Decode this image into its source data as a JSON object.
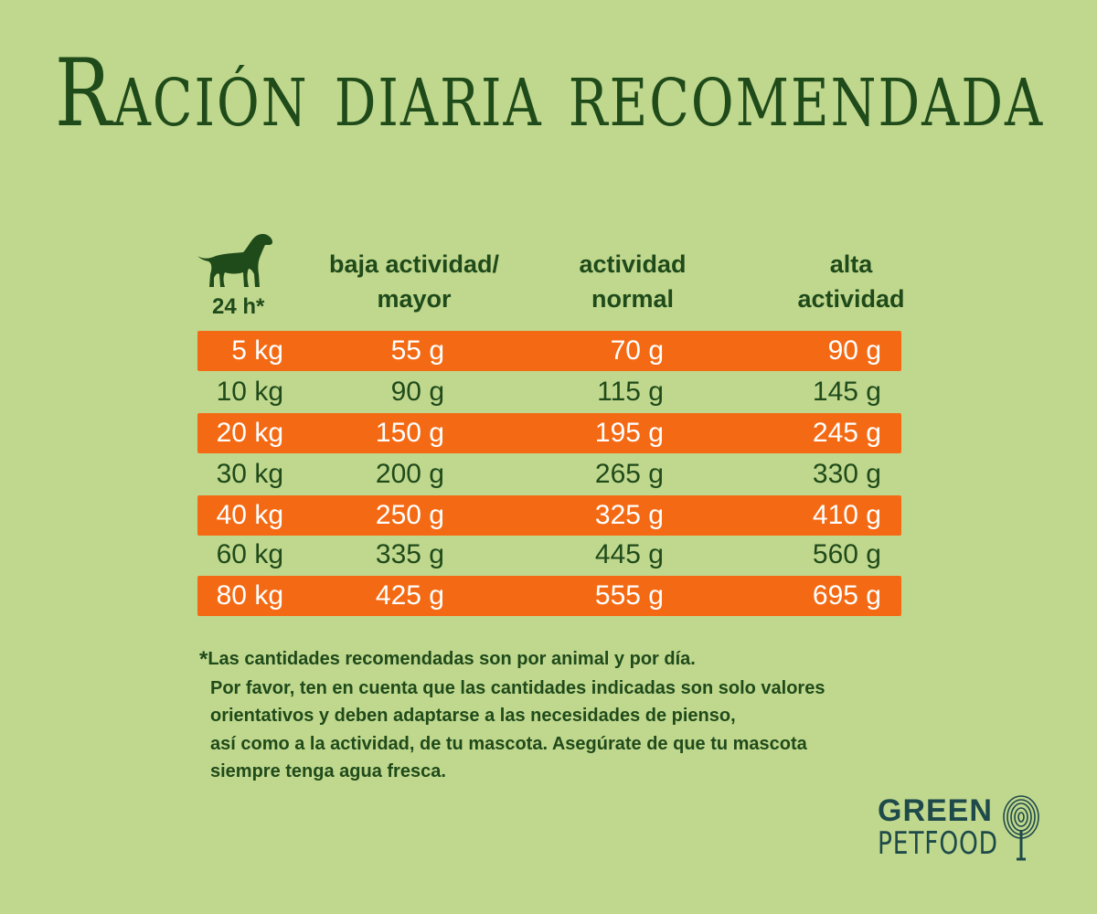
{
  "title": "Ración diaria recomendada",
  "header": {
    "period_label": "24 h*",
    "columns": [
      {
        "line1": "baja actividad/",
        "line2": "mayor"
      },
      {
        "line1": "actividad",
        "line2": "normal"
      },
      {
        "line1": "alta",
        "line2": "actividad"
      }
    ]
  },
  "table": {
    "rows": [
      {
        "weight": "5 kg",
        "low": "55 g",
        "normal": "70 g",
        "high": "90 g"
      },
      {
        "weight": "10 kg",
        "low": "90 g",
        "normal": "115 g",
        "high": "145 g"
      },
      {
        "weight": "20 kg",
        "low": "150 g",
        "normal": "195 g",
        "high": "245 g"
      },
      {
        "weight": "30 kg",
        "low": "200 g",
        "normal": "265 g",
        "high": "330 g"
      },
      {
        "weight": "40 kg",
        "low": "250 g",
        "normal": "325 g",
        "high": "410 g"
      },
      {
        "weight": "60 kg",
        "low": "335 g",
        "normal": "445 g",
        "high": "560 g"
      },
      {
        "weight": "80 kg",
        "low": "425 g",
        "normal": "555 g",
        "high": "695 g"
      }
    ]
  },
  "note": {
    "star": "*",
    "lines": [
      "Las cantidades recomendadas son por animal y por día.",
      "Por favor, ten en cuenta que las cantidades indicadas son solo valores",
      "orientativos y deben adaptarse a las necesidades de pienso,",
      "así como a la actividad, de tu mascota. Asegúrate de que tu mascota",
      "siempre tenga agua fresca."
    ]
  },
  "logo": {
    "line1": "GREEN",
    "line2": "PETFOOD",
    "icon": "fingerprint-tree-icon"
  },
  "colors": {
    "background": "#c0d88e",
    "stripe": "#f46a14",
    "text": "#1f4a1a",
    "logo": "#1e4a4a"
  }
}
